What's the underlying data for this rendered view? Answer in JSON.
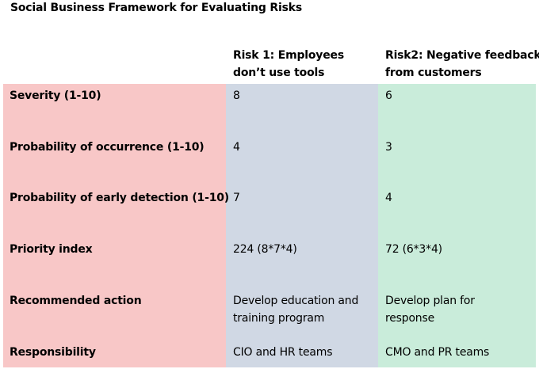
{
  "title": "Social Business Framework for Evaluating Risks",
  "columns": {
    "risk1": [
      "Risk 1: Employees",
      "don’t use tools"
    ],
    "risk2": [
      "Risk2: Negative feedback",
      "from customers"
    ]
  },
  "colors": {
    "label_column": "#f8c7c7",
    "risk1_column": "#d0d8e4",
    "risk2_column": "#c9ecda"
  },
  "rows": [
    {
      "label": "Severity (1-10)",
      "risk1": [
        "8"
      ],
      "risk2": [
        "6"
      ]
    },
    {
      "label": "Probability of occurrence (1-10)",
      "risk1": [
        "4"
      ],
      "risk2": [
        "3"
      ]
    },
    {
      "label": "Probability of early detection (1-10)",
      "risk1": [
        "7"
      ],
      "risk2": [
        "4"
      ]
    },
    {
      "label": "Priority index",
      "risk1": [
        "224 (8*7*4)"
      ],
      "risk2": [
        "72 (6*3*4)"
      ]
    },
    {
      "label": "Recommended action",
      "risk1": [
        "Develop education and",
        "training program"
      ],
      "risk2": [
        "Develop plan for",
        "response"
      ]
    },
    {
      "label": "Responsibility",
      "risk1": [
        "CIO and HR teams"
      ],
      "risk2": [
        "CMO and PR teams"
      ]
    }
  ]
}
